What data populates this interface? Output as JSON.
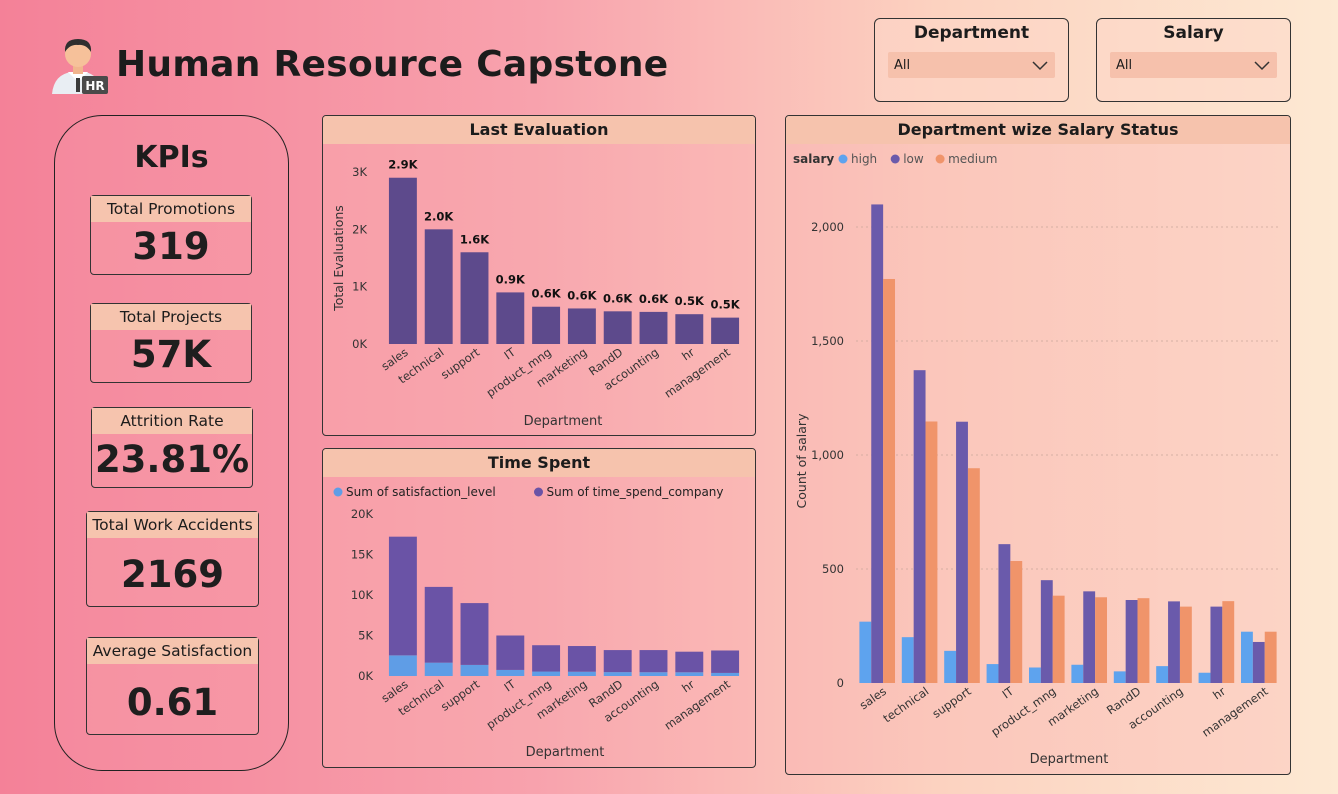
{
  "header": {
    "title": "Human Resource Capstone",
    "logo_icon": "hr-person-icon",
    "logo_badge": "HR"
  },
  "slicers": [
    {
      "title": "Department",
      "value": "All"
    },
    {
      "title": "Salary",
      "value": "All"
    }
  ],
  "kpis": {
    "heading": "KPIs",
    "cards": [
      {
        "label": "Total Promotions",
        "value": "319"
      },
      {
        "label": "Total Projects",
        "value": "57K"
      },
      {
        "label": "Attrition Rate",
        "value": "23.81%"
      },
      {
        "label": "Total Work Accidents",
        "value": "2169"
      },
      {
        "label": "Average Satisfaction",
        "value": "0.61"
      }
    ]
  },
  "chart_data": [
    {
      "type": "bar",
      "title": "Last Evaluation",
      "xlabel": "Department",
      "ylabel": "Total Evaluations",
      "categories": [
        "sales",
        "technical",
        "support",
        "IT",
        "product_mng",
        "marketing",
        "RandD",
        "accounting",
        "hr",
        "management"
      ],
      "values": [
        2900,
        2000,
        1600,
        900,
        650,
        620,
        570,
        560,
        520,
        460
      ],
      "data_labels": [
        "2.9K",
        "2.0K",
        "1.6K",
        "0.9K",
        "0.6K",
        "0.6K",
        "0.6K",
        "0.6K",
        "0.5K",
        "0.5K"
      ],
      "yticks": [
        "0K",
        "1K",
        "2K",
        "3K"
      ],
      "ylim": [
        0,
        3000
      ],
      "color": "#5d4a8c"
    },
    {
      "type": "bar",
      "stacked": true,
      "title": "Time Spent",
      "xlabel": "Department",
      "categories": [
        "sales",
        "technical",
        "support",
        "IT",
        "product_mng",
        "marketing",
        "RandD",
        "accounting",
        "hr",
        "management"
      ],
      "series": [
        {
          "name": "Sum of satisfaction_level",
          "color": "#5f9de6",
          "values": [
            2550,
            1650,
            1370,
            750,
            550,
            530,
            480,
            470,
            460,
            380
          ]
        },
        {
          "name": "Sum of time_spend_company",
          "color": "#6a53a6",
          "values": [
            14650,
            9350,
            7630,
            4250,
            3250,
            3170,
            2720,
            2730,
            2540,
            2770
          ]
        }
      ],
      "yticks": [
        "0K",
        "5K",
        "10K",
        "15K",
        "20K"
      ],
      "ylim": [
        0,
        20000
      ]
    },
    {
      "type": "bar",
      "title": "Department wize Salary Status",
      "xlabel": "Department",
      "ylabel": "Count of salary",
      "legend_title": "salary",
      "legend_position": "top-left",
      "categories": [
        "sales",
        "technical",
        "support",
        "IT",
        "product_mng",
        "marketing",
        "RandD",
        "accounting",
        "hr",
        "management"
      ],
      "series": [
        {
          "name": "high",
          "color": "#5ea3ee",
          "values": [
            269,
            201,
            141,
            83,
            68,
            80,
            51,
            74,
            45,
            225
          ]
        },
        {
          "name": "low",
          "color": "#6a5aab",
          "values": [
            2099,
            1372,
            1146,
            609,
            451,
            402,
            364,
            358,
            335,
            180
          ]
        },
        {
          "name": "medium",
          "color": "#f0946a",
          "values": [
            1772,
            1147,
            942,
            535,
            383,
            376,
            372,
            335,
            359,
            225
          ]
        }
      ],
      "yticks": [
        "0",
        "500",
        "1,000",
        "1,500",
        "2,000"
      ],
      "ylim": [
        0,
        2000
      ],
      "grid": true
    }
  ]
}
